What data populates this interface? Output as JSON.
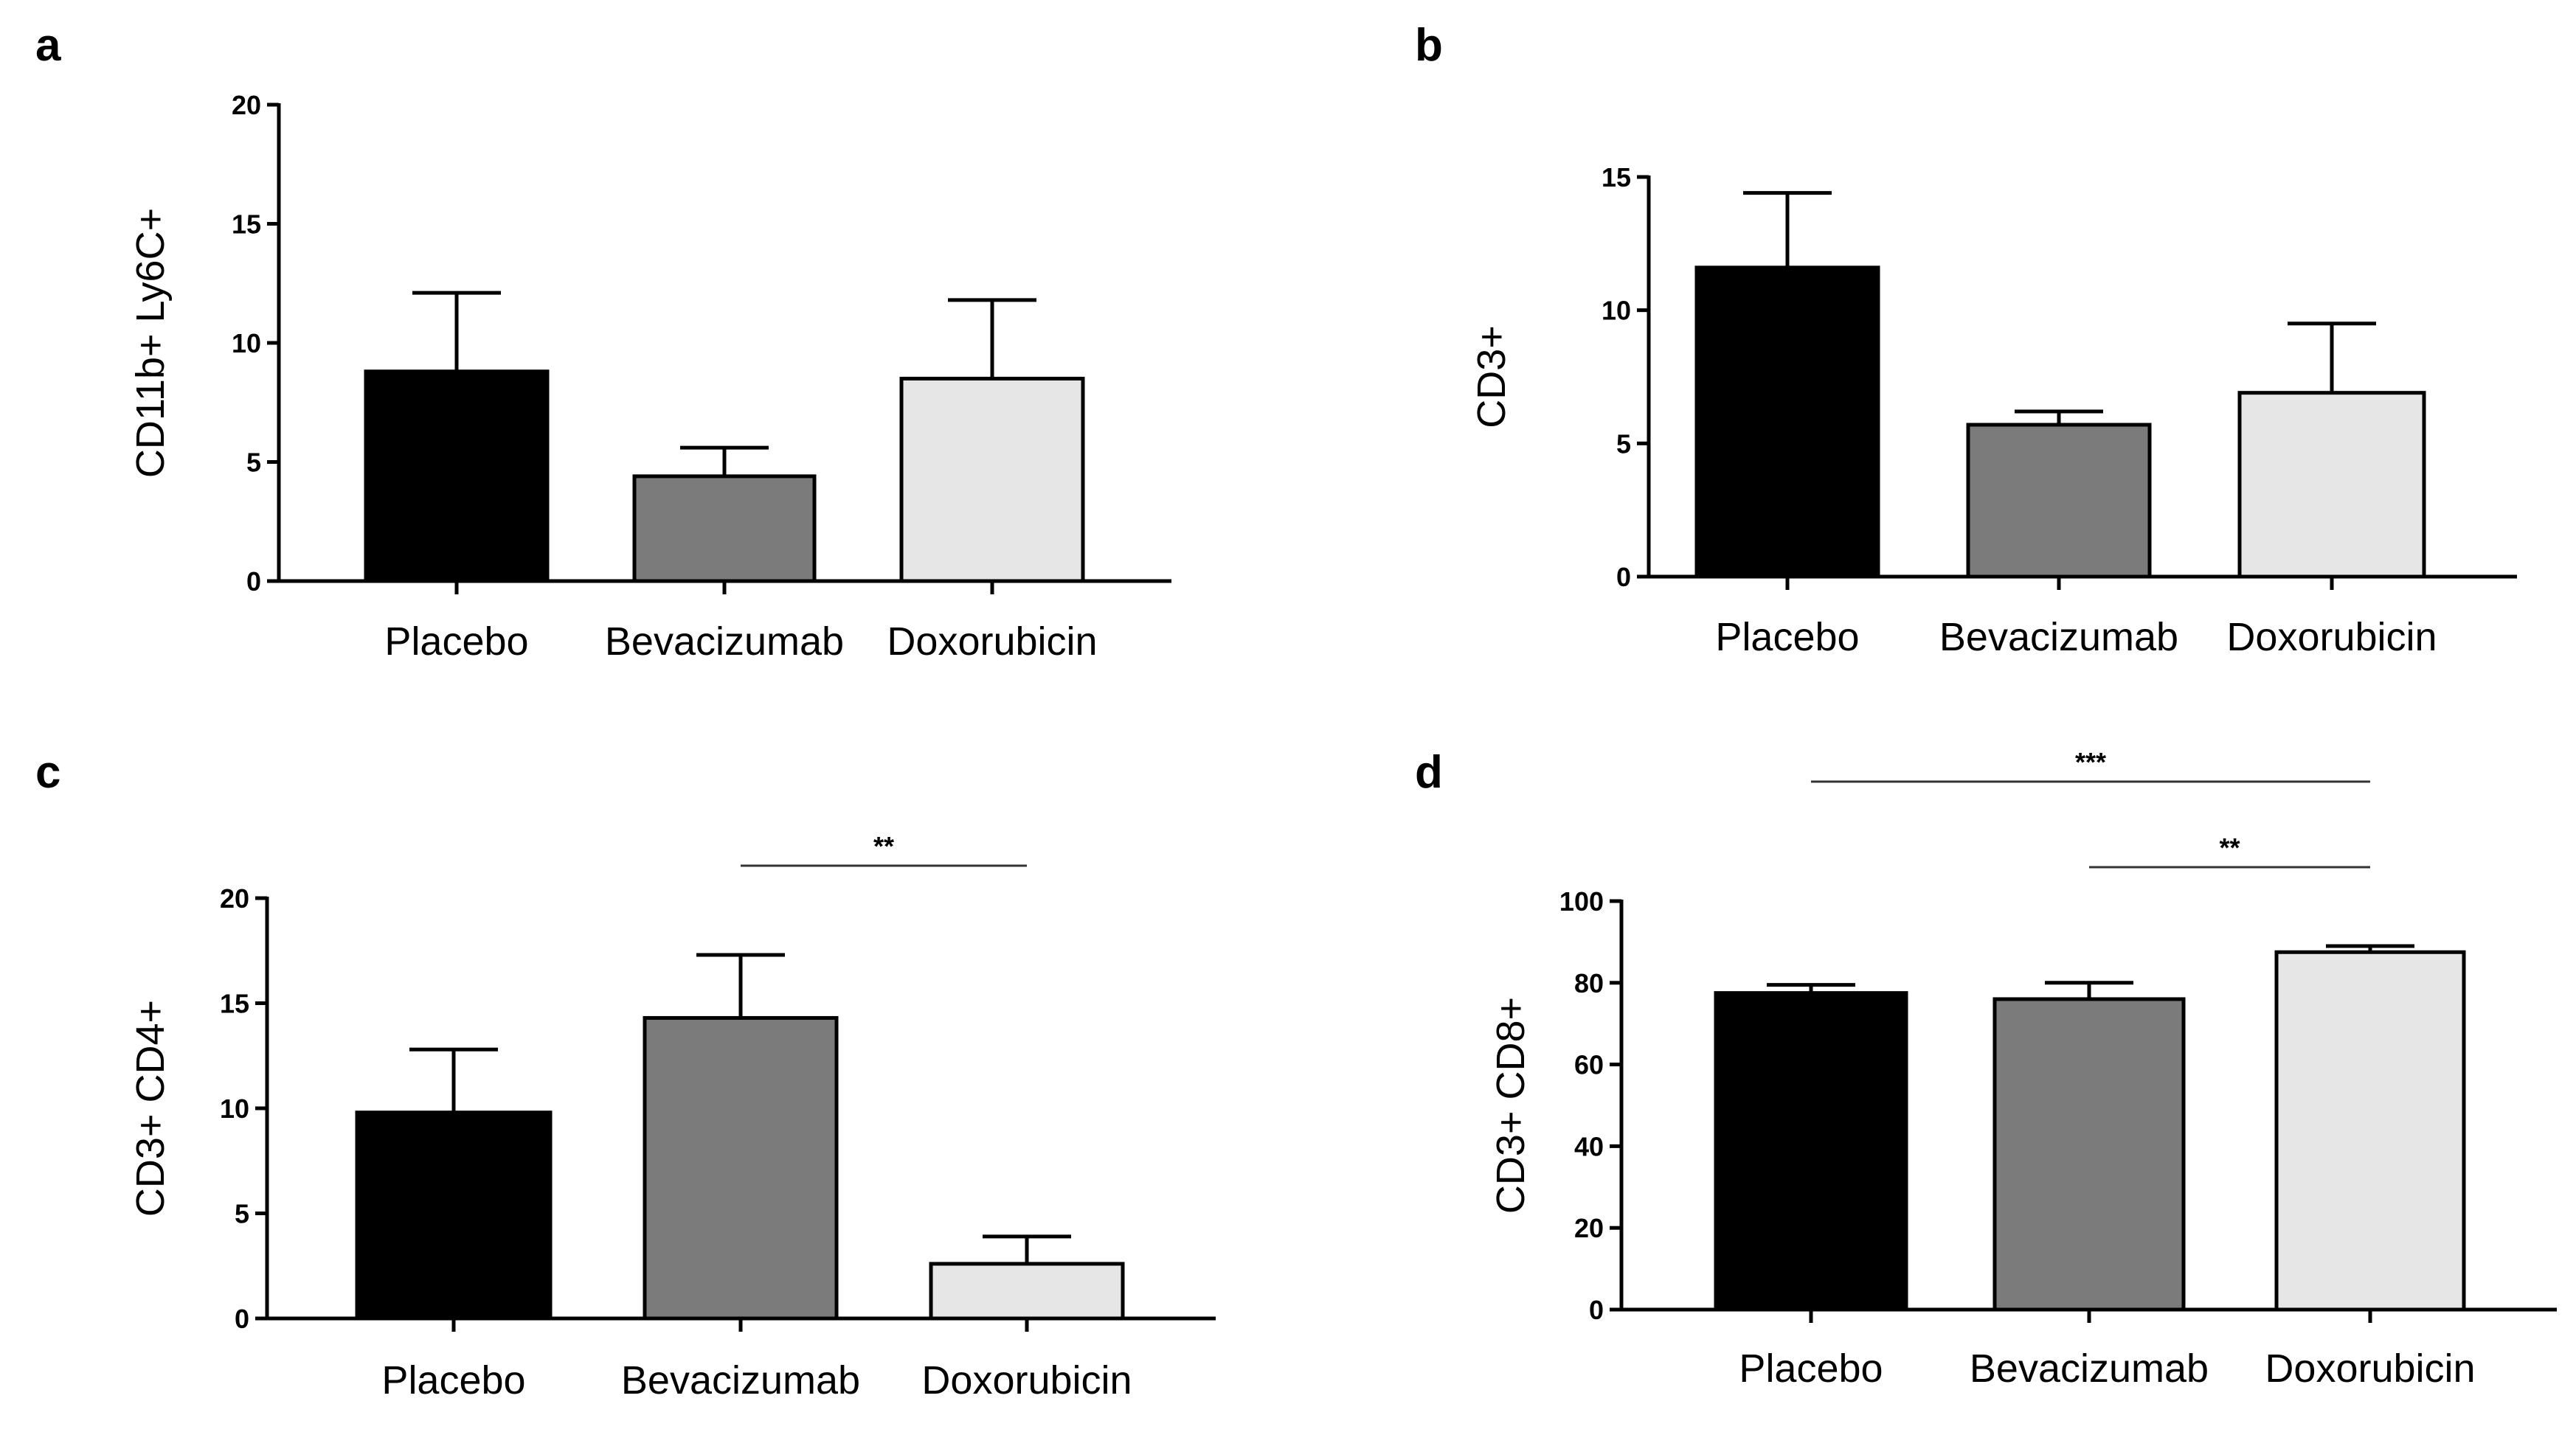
{
  "figure": {
    "colors": {
      "Placebo": "#000000",
      "Bevacizumab": "#7b7b7b",
      "Doxorubicin": "#e6e6e6",
      "axis": "#000000",
      "bar_outline": "#000000"
    }
  },
  "chart_data": [
    {
      "panel": "a",
      "type": "bar",
      "ylabel": "CD11b+ Ly6C+",
      "xlabel": "",
      "ylim": [
        0,
        20
      ],
      "yticks": [
        0,
        5,
        10,
        15,
        20
      ],
      "ytick_labels": [
        "0",
        "5",
        "10",
        "15",
        "20"
      ],
      "categories": [
        "Placebo",
        "Bevacizumab",
        "Doxorubicin"
      ],
      "values": [
        8.8,
        4.4,
        8.5
      ],
      "errors": [
        3.3,
        1.2,
        3.3
      ],
      "significance": []
    },
    {
      "panel": "b",
      "type": "bar",
      "ylabel": "CD3+",
      "xlabel": "",
      "ylim": [
        0,
        15
      ],
      "yticks": [
        0,
        5,
        10,
        15
      ],
      "ytick_labels": [
        "0",
        "5",
        "10",
        "15"
      ],
      "categories": [
        "Placebo",
        "Bevacizumab",
        "Doxorubicin"
      ],
      "values": [
        11.6,
        5.7,
        6.9
      ],
      "errors": [
        2.8,
        0.5,
        2.6
      ],
      "significance": []
    },
    {
      "panel": "c",
      "type": "bar",
      "ylabel": "CD3+ CD4+",
      "xlabel": "",
      "ylim": [
        0,
        20
      ],
      "yticks": [
        0,
        5,
        10,
        15,
        20
      ],
      "ytick_labels": [
        "0",
        "5",
        "10",
        "15",
        "20"
      ],
      "categories": [
        "Placebo",
        "Bevacizumab",
        "Doxorubicin"
      ],
      "values": [
        9.8,
        14.3,
        2.6
      ],
      "errors": [
        3.0,
        3.0,
        1.3
      ],
      "significance": [
        {
          "from": "Bevacizumab",
          "to": "Doxorubicin",
          "label": "**",
          "level": 0
        }
      ]
    },
    {
      "panel": "d",
      "type": "bar",
      "ylabel": "CD3+ CD8+",
      "xlabel": "",
      "ylim": [
        0,
        100
      ],
      "yticks": [
        0,
        20,
        40,
        60,
        80,
        100
      ],
      "ytick_labels": [
        "0",
        "20",
        "40",
        "60",
        "80",
        "100"
      ],
      "categories": [
        "Placebo",
        "Bevacizumab",
        "Doxorubicin"
      ],
      "values": [
        77.5,
        76,
        87.5
      ],
      "errors": [
        2,
        4,
        1.5
      ],
      "significance": [
        {
          "from": "Bevacizumab",
          "to": "Doxorubicin",
          "label": "**",
          "level": 0
        },
        {
          "from": "Placebo",
          "to": "Doxorubicin",
          "label": "***",
          "level": 1
        }
      ]
    }
  ]
}
